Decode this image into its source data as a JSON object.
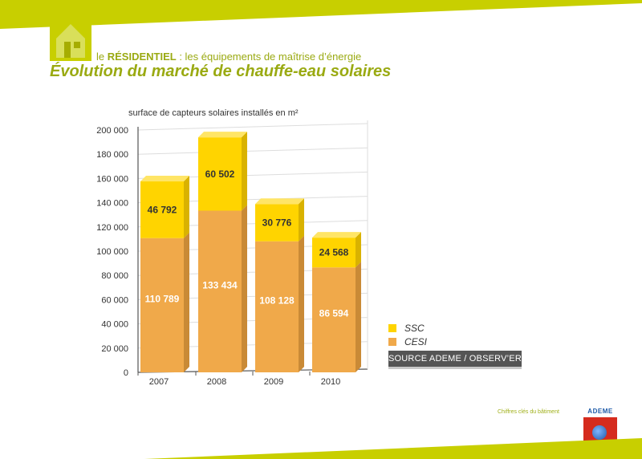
{
  "header": {
    "subtitle_prefix": "le ",
    "subtitle_bold": "RÉSIDENTIEL",
    "subtitle_rest": " : les équipements de maîtrise d’énergie",
    "title": "Évolution du marché de chauffe-eau solaires"
  },
  "legend": {
    "items": [
      {
        "label": "SSC",
        "color": "#ffd400"
      },
      {
        "label": "CESI",
        "color": "#f0a94a"
      }
    ]
  },
  "source_label": "SOURCE ADEME / OBSERV’ER",
  "footer": {
    "note": "Chiffres clés du bâtiment",
    "logo_text": "ADEME"
  },
  "colors": {
    "accent": "#c8cf00",
    "title": "#9aaa12",
    "ssc": "#ffd400",
    "cesi": "#f0a94a"
  },
  "chart_data": {
    "type": "bar",
    "stacked": true,
    "title": "",
    "ylabel": "surface de capteurs solaires installés en m²",
    "xlabel": "",
    "categories": [
      "2007",
      "2008",
      "2009",
      "2010"
    ],
    "series": [
      {
        "name": "CESI",
        "values": [
          110789,
          133434,
          108128,
          86594
        ],
        "labels": [
          "110 789",
          "133 434",
          "108 128",
          "86 594"
        ]
      },
      {
        "name": "SSC",
        "values": [
          46792,
          60502,
          30776,
          24568
        ],
        "labels": [
          "46 792",
          "60 502",
          "30 776",
          "24 568"
        ]
      }
    ],
    "ylim": [
      0,
      200000
    ],
    "yticks": [
      0,
      20000,
      40000,
      60000,
      80000,
      100000,
      120000,
      140000,
      160000,
      180000,
      200000
    ],
    "ytick_labels": [
      "0",
      "20 000",
      "40 000",
      "60 000",
      "80 000",
      "100 000",
      "120 000",
      "140 000",
      "160 000",
      "180 000",
      "200 000"
    ],
    "grid": true,
    "legend_position": "right"
  }
}
